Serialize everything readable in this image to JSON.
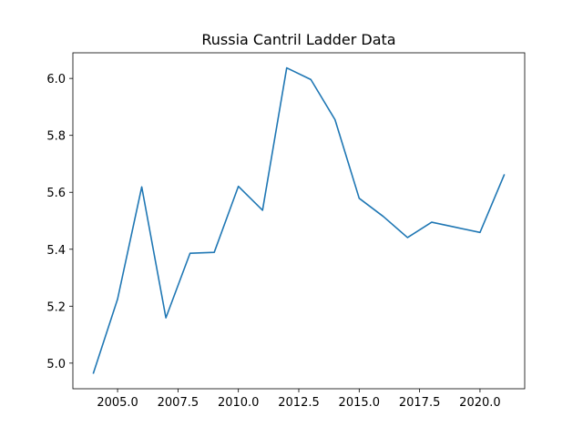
{
  "chart_data": {
    "type": "line",
    "title": "Russia Cantril Ladder Data",
    "xlabel": "",
    "ylabel": "",
    "xlim": [
      2003.15,
      2021.85
    ],
    "ylim": [
      4.91,
      6.09
    ],
    "x_ticks": [
      2005.0,
      2007.5,
      2010.0,
      2012.5,
      2015.0,
      2017.5,
      2020.0
    ],
    "x_tick_labels": [
      "2005.0",
      "2007.5",
      "2010.0",
      "2012.5",
      "2015.0",
      "2017.5",
      "2020.0"
    ],
    "y_ticks": [
      5.0,
      5.2,
      5.4,
      5.6,
      5.8,
      6.0
    ],
    "y_tick_labels": [
      "5.0",
      "5.2",
      "5.4",
      "5.6",
      "5.8",
      "6.0"
    ],
    "grid": false,
    "line_color": "#1f77b4",
    "series": [
      {
        "x": [
          2004,
          2005,
          2006,
          2007,
          2008,
          2009,
          2010,
          2011,
          2012,
          2013,
          2014,
          2015,
          2016,
          2017,
          2018,
          2019,
          2020,
          2021
        ],
        "values": [
          4.965,
          5.225,
          5.619,
          5.159,
          5.386,
          5.389,
          5.621,
          5.537,
          6.037,
          5.996,
          5.855,
          5.579,
          5.515,
          5.441,
          5.495,
          5.477,
          5.459,
          5.661
        ]
      }
    ]
  }
}
